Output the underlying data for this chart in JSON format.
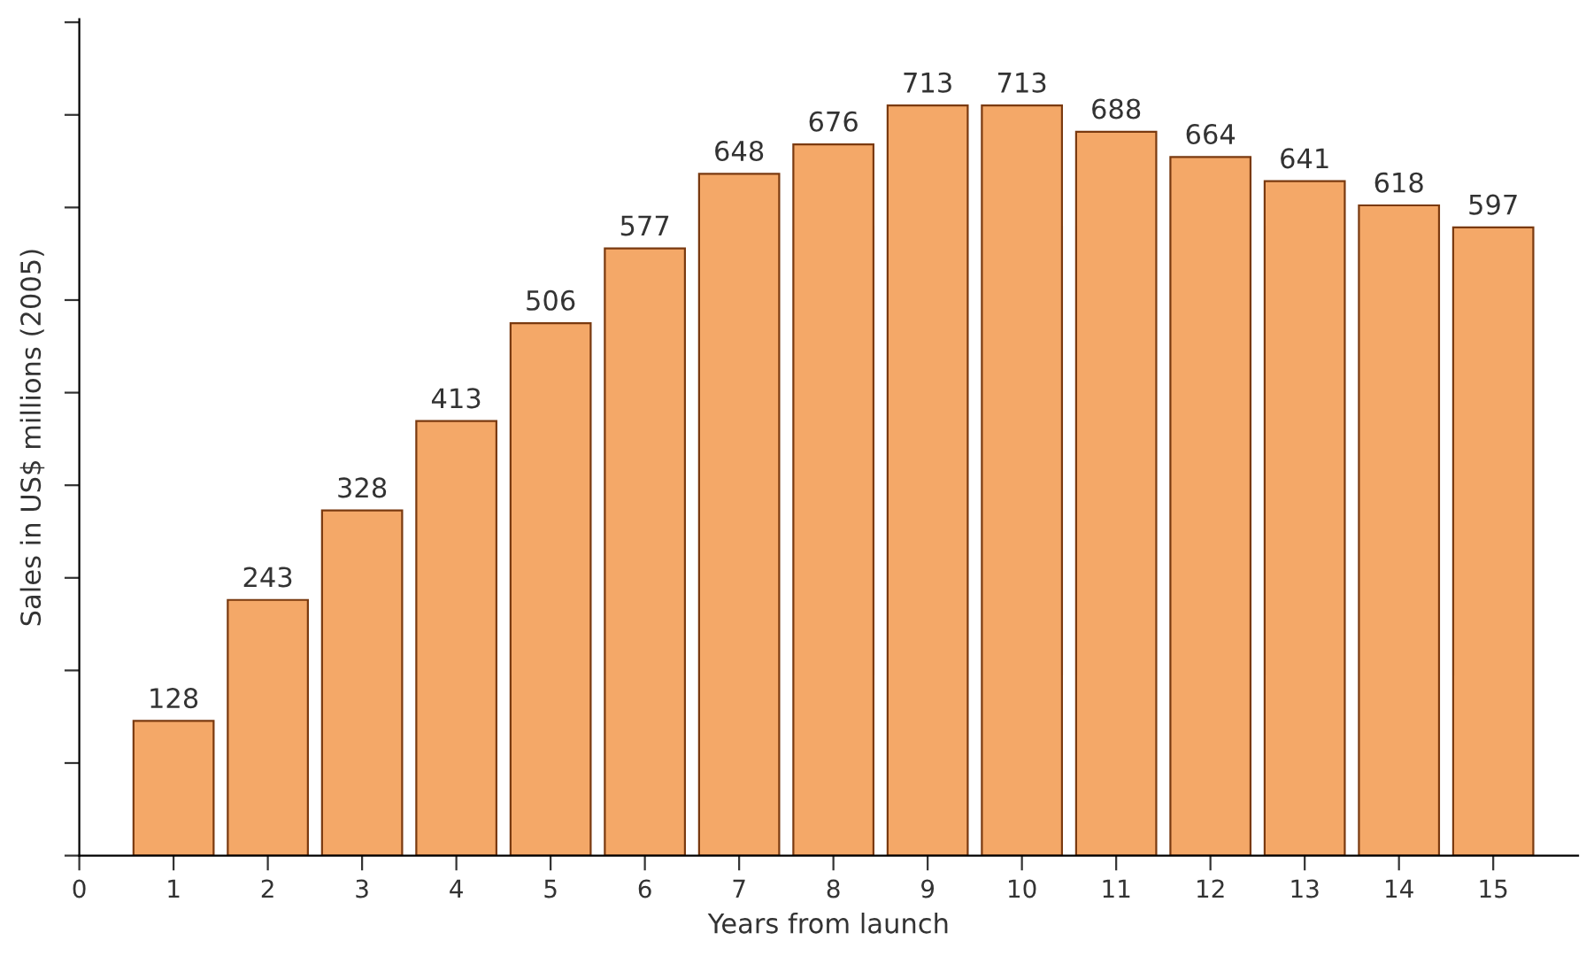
{
  "chart_data": {
    "type": "bar",
    "xlabel": "Years from launch",
    "ylabel": "Sales in US$ millions (2005)",
    "x": [
      1,
      2,
      3,
      4,
      5,
      6,
      7,
      8,
      9,
      10,
      11,
      12,
      13,
      14,
      15
    ],
    "values": [
      128,
      243,
      328,
      413,
      506,
      577,
      648,
      676,
      713,
      713,
      688,
      664,
      641,
      618,
      597
    ],
    "color": "#f4a868",
    "data_labels": true,
    "xlim": [
      0,
      15.9
    ],
    "xticks": [
      0,
      1,
      2,
      3,
      4,
      5,
      6,
      7,
      8,
      9,
      10,
      11,
      12,
      13,
      14,
      15
    ],
    "ylim": [
      0,
      795
    ],
    "yticks": [
      {
        "value": 0,
        "label": null
      },
      {
        "value": 88,
        "label": null
      },
      {
        "value": 176,
        "label": null
      },
      {
        "value": 264,
        "label": null
      },
      {
        "value": 352,
        "label": null
      },
      {
        "value": 440,
        "label": null
      },
      {
        "value": 528,
        "label": null
      },
      {
        "value": 616,
        "label": null
      },
      {
        "value": 704,
        "label": null
      },
      {
        "value": 792,
        "label": null
      }
    ],
    "grid": false,
    "legend": false
  }
}
